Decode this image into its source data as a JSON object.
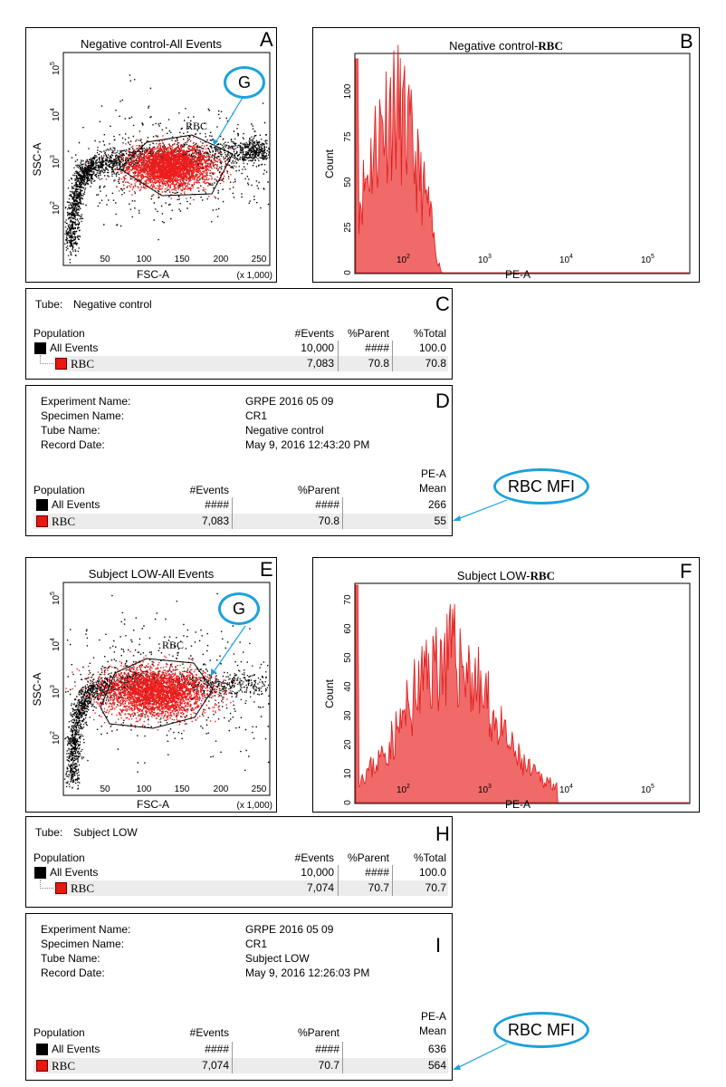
{
  "panels": {
    "a": {
      "title": "Negative control-All Events",
      "letter": "A",
      "gate": "RBC",
      "callout": "G",
      "x_axis": "FSC-A",
      "y_axis": "SSC-A",
      "x_ticks": [
        "50",
        "100",
        "150",
        "200",
        "250"
      ],
      "x_scale": "(x 1,000)"
    },
    "b": {
      "title_prefix": "Negative control-",
      "title_suffix": "RBC",
      "letter": "B",
      "x_axis": "PE-A",
      "y_axis": "Count",
      "y_ticks": [
        "0",
        "25",
        "50",
        "75",
        "100"
      ]
    },
    "c": {
      "letter": "C",
      "tube_label": "Tube:",
      "tube": "Negative control",
      "headers": [
        "Population",
        "#Events",
        "%Parent",
        "%Total"
      ],
      "rows": [
        {
          "name": "All Events",
          "events": "10,000",
          "parent": "####",
          "total": "100.0"
        },
        {
          "name": "RBC",
          "events": "7,083",
          "parent": "70.8",
          "total": "70.8"
        }
      ]
    },
    "d": {
      "letter": "D",
      "info": [
        {
          "k": "Experiment Name:",
          "v": "GRPE 2016 05 09"
        },
        {
          "k": "Specimen Name:",
          "v": "CR1"
        },
        {
          "k": "Tube Name:",
          "v": "Negative control"
        },
        {
          "k": "Record Date:",
          "v": "May 9, 2016 12:43:20 PM"
        }
      ],
      "headers": [
        "Population",
        "#Events",
        "%Parent",
        "PE-A",
        "Mean"
      ],
      "rows": [
        {
          "name": "All Events",
          "events": "####",
          "parent": "####",
          "mean": "266"
        },
        {
          "name": "RBC",
          "events": "7,083",
          "parent": "70.8",
          "mean": "55"
        }
      ]
    },
    "e": {
      "title": "Subject LOW-All Events",
      "letter": "E",
      "gate": "RBC",
      "callout": "G",
      "x_axis": "FSC-A",
      "y_axis": "SSC-A",
      "x_ticks": [
        "50",
        "100",
        "150",
        "200",
        "250"
      ],
      "x_scale": "(x 1,000)"
    },
    "f": {
      "title_prefix": "Subject LOW-",
      "title_suffix": "RBC",
      "letter": "F",
      "x_axis": "PE-A",
      "y_axis": "Count",
      "y_ticks": [
        "0",
        "10",
        "20",
        "30",
        "40",
        "50",
        "60",
        "70"
      ]
    },
    "h": {
      "letter": "H",
      "tube_label": "Tube:",
      "tube": "Subject LOW",
      "headers": [
        "Population",
        "#Events",
        "%Parent",
        "%Total"
      ],
      "rows": [
        {
          "name": "All Events",
          "events": "10,000",
          "parent": "####",
          "total": "100.0"
        },
        {
          "name": "RBC",
          "events": "7,074",
          "parent": "70.7",
          "total": "70.7"
        }
      ]
    },
    "i": {
      "letter": "I",
      "info": [
        {
          "k": "Experiment Name:",
          "v": "GRPE 2016 05 09"
        },
        {
          "k": "Specimen Name:",
          "v": "CR1"
        },
        {
          "k": "Tube Name:",
          "v": "Subject LOW"
        },
        {
          "k": "Record Date:",
          "v": "May 9, 2016 12:26:03 PM"
        }
      ],
      "headers": [
        "Population",
        "#Events",
        "%Parent",
        "PE-A",
        "Mean"
      ],
      "rows": [
        {
          "name": "All Events",
          "events": "####",
          "parent": "####",
          "mean": "636"
        },
        {
          "name": "RBC",
          "events": "7,074",
          "parent": "70.7",
          "mean": "564"
        }
      ]
    }
  },
  "log_ticks": {
    "y_exp": [
      "10",
      "10",
      "10",
      "10"
    ],
    "y_pow": [
      "2",
      "3",
      "4",
      "5"
    ],
    "x_pow": [
      "2",
      "3",
      "4",
      "5"
    ]
  },
  "mfi_callout": "RBC MFI",
  "colors": {
    "event_red": "#ee1c1c",
    "hist_fill": "#f06a6a",
    "hist_line": "#e11818",
    "callout": "#1ba2dc",
    "all_events": "#000000"
  }
}
